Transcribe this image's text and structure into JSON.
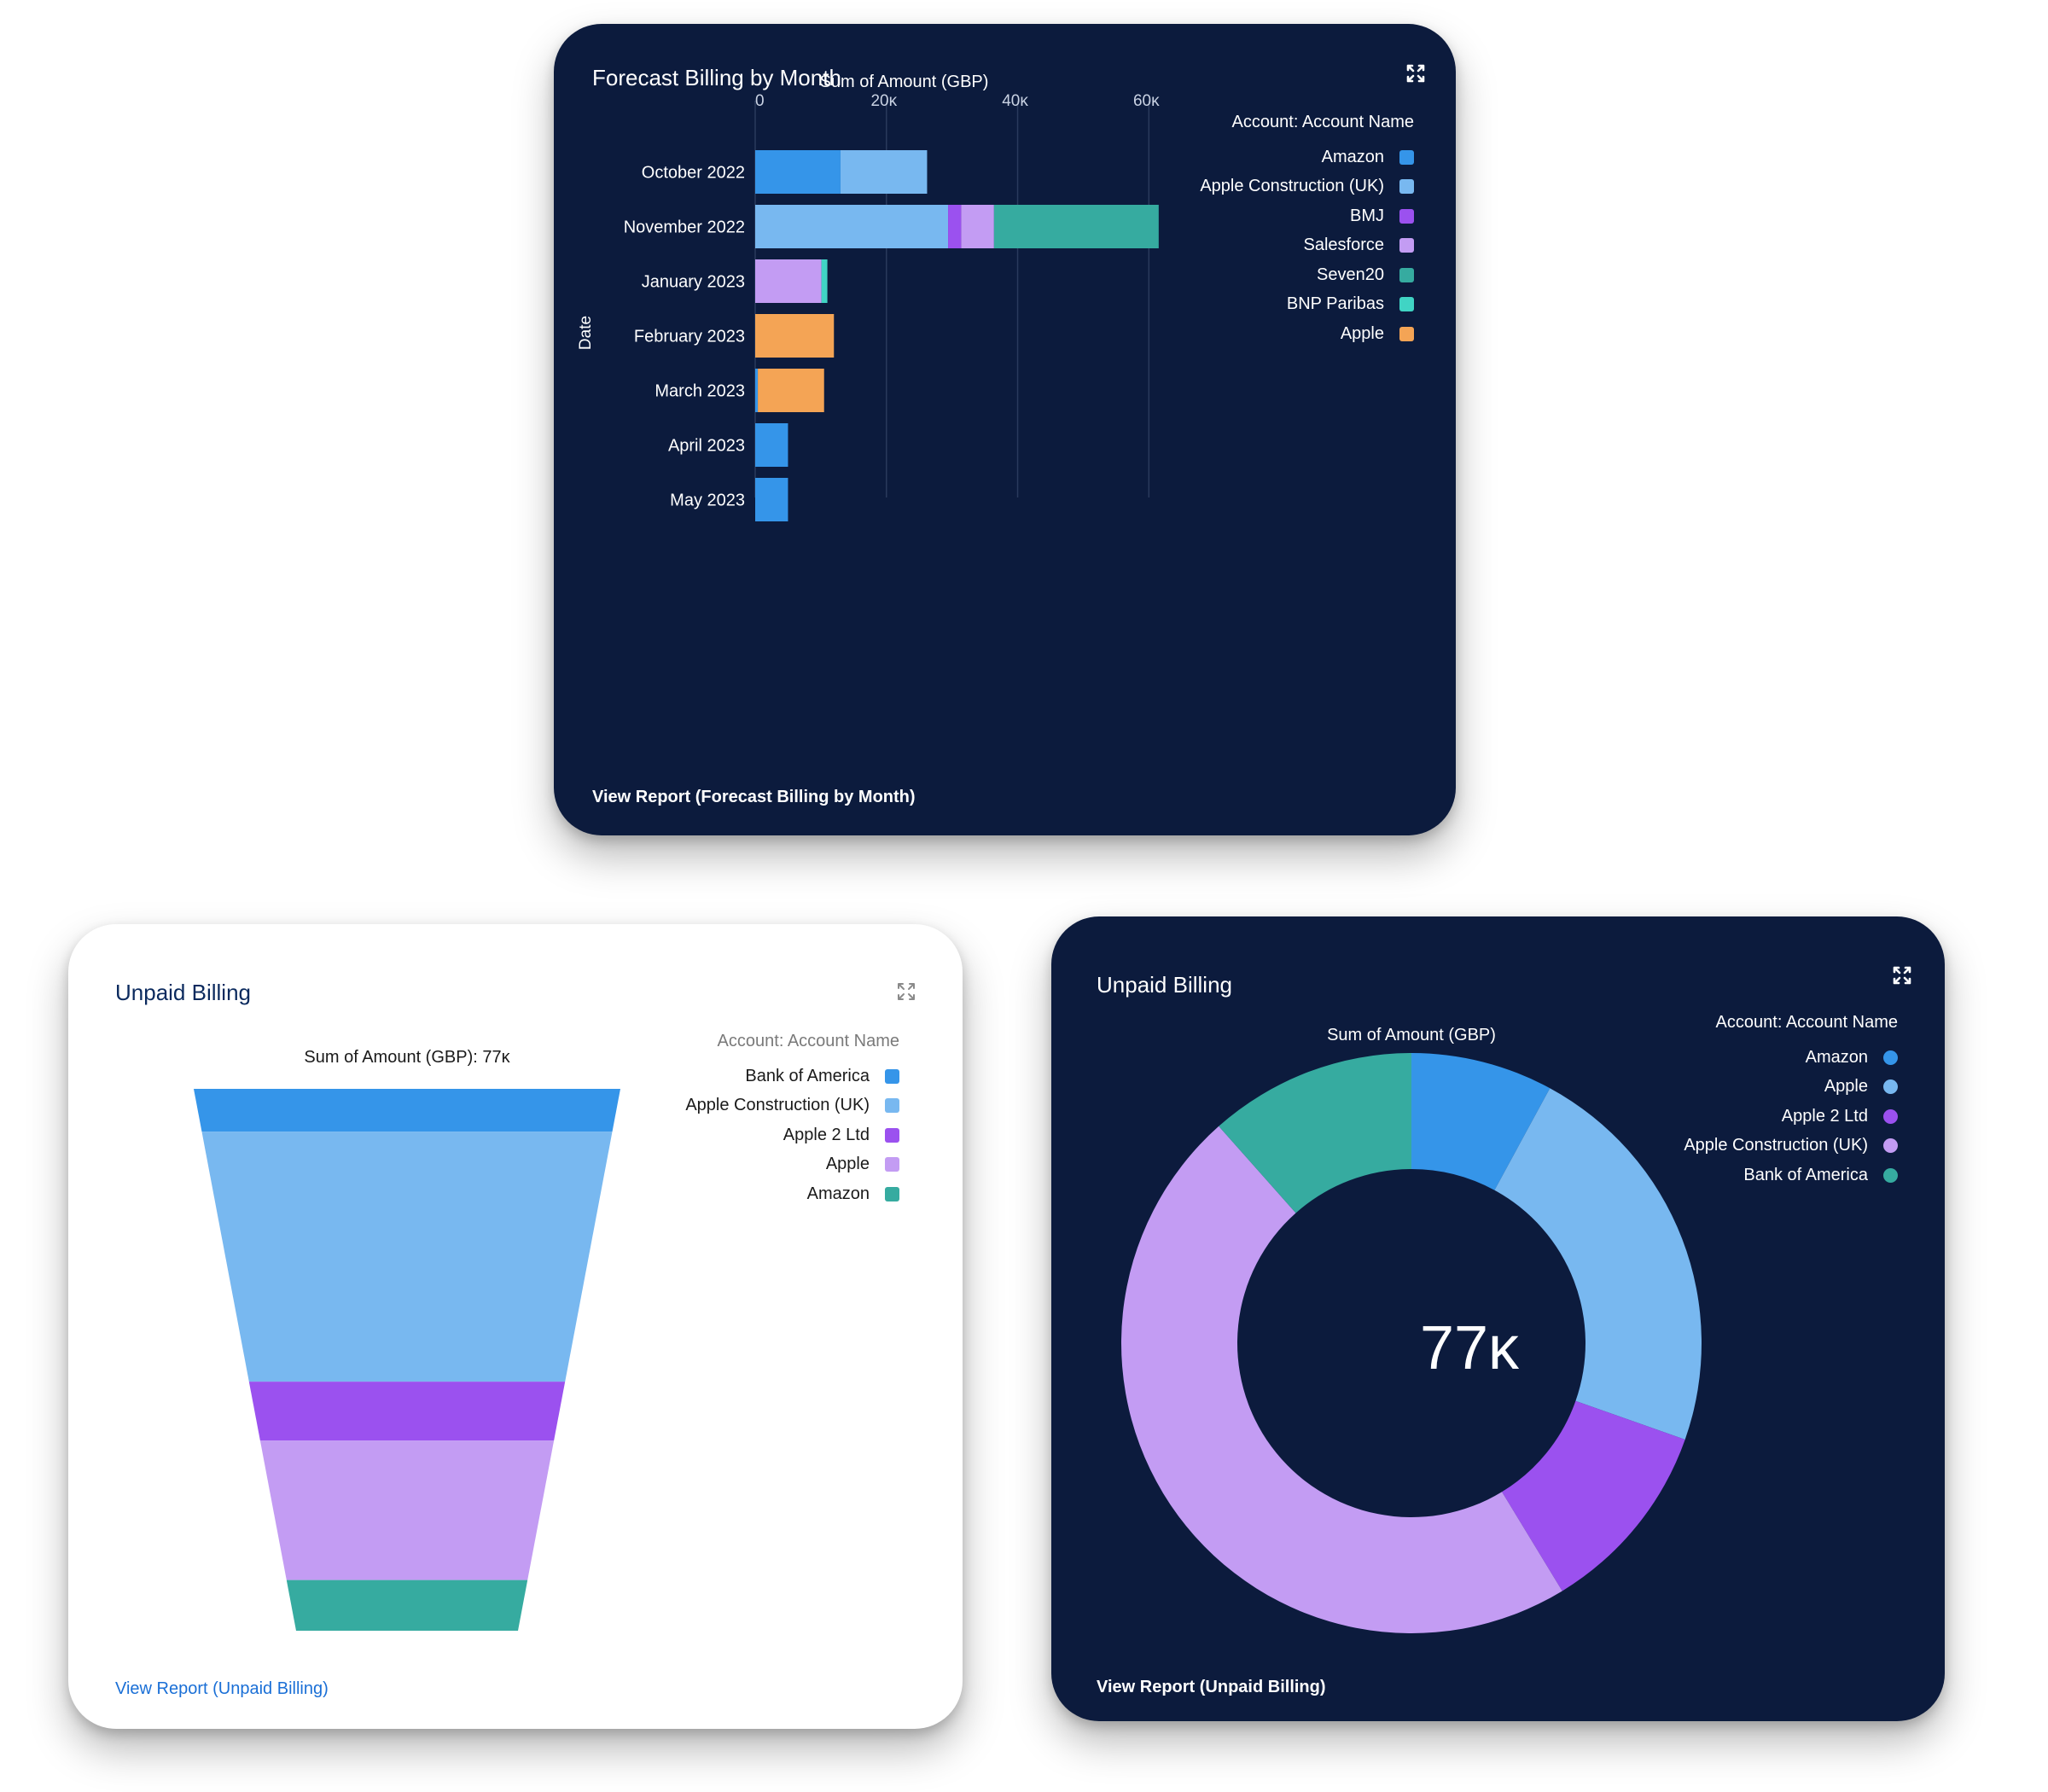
{
  "colors": {
    "blue": "#3595e9",
    "light_blue": "#78b8f0",
    "purple": "#9b51ef",
    "lavender": "#c39cf3",
    "teal": "#36aba0",
    "cyan": "#40d4c4",
    "orange": "#f4a455",
    "dark_bg": "#0c1b3d"
  },
  "forecast": {
    "title": "Forecast Billing by Month",
    "footer_link": "View Report (Forecast Billing by Month)",
    "expand_icon": "expand-icon",
    "legend_title": "Account: Account Name"
  },
  "unpaid_funnel": {
    "title": "Unpaid Billing",
    "footer_link": "View Report (Unpaid Billing)",
    "expand_icon": "expand-icon",
    "legend_title": "Account: Account Name"
  },
  "unpaid_donut": {
    "title": "Unpaid Billing",
    "footer_link": "View Report (Unpaid Billing)",
    "expand_icon": "expand-icon",
    "legend_title": "Account: Account Name",
    "center_value": "77ĸ"
  },
  "chart_data": [
    {
      "type": "bar",
      "orientation": "horizontal",
      "stacked": true,
      "title": "Forecast Billing by Month",
      "xlabel": "Sum of Amount (GBP)",
      "ylabel": "Date",
      "xlim": [
        0,
        61000
      ],
      "xticks": [
        0,
        20000,
        40000,
        60000
      ],
      "xtick_labels": [
        "0",
        "20ĸ",
        "40ĸ",
        "60ĸ"
      ],
      "legend_title": "Account: Account Name",
      "legend_position": "top-right",
      "categories": [
        "October 2022",
        "November 2022",
        "January 2023",
        "February 2023",
        "March 2023",
        "April 2023",
        "May 2023"
      ],
      "series": [
        {
          "name": "Amazon",
          "color": "#3595e9",
          "values": [
            13000,
            0,
            0,
            0,
            400,
            5000,
            5000
          ]
        },
        {
          "name": "Apple Construction (UK)",
          "color": "#78b8f0",
          "values": [
            13200,
            29400,
            0,
            0,
            0,
            0,
            0
          ]
        },
        {
          "name": "BMJ",
          "color": "#9b51ef",
          "values": [
            0,
            2000,
            0,
            0,
            0,
            0,
            0
          ]
        },
        {
          "name": "Salesforce",
          "color": "#c39cf3",
          "values": [
            0,
            5000,
            10100,
            0,
            0,
            0,
            0
          ]
        },
        {
          "name": "Seven20",
          "color": "#36aba0",
          "values": [
            0,
            25100,
            0,
            0,
            0,
            0,
            0
          ]
        },
        {
          "name": "BNP Paribas",
          "color": "#40d4c4",
          "values": [
            0,
            0,
            900,
            0,
            0,
            0,
            0
          ]
        },
        {
          "name": "Apple",
          "color": "#f4a455",
          "values": [
            0,
            0,
            0,
            12000,
            10100,
            0,
            0
          ]
        }
      ]
    },
    {
      "type": "funnel",
      "title": "Unpaid Billing",
      "label": "Sum of Amount (GBP): 77ĸ",
      "total": 77000,
      "legend_title": "Account: Account Name",
      "legend_position": "top-right",
      "series": [
        {
          "name": "Bank of America",
          "color": "#3595e9",
          "value": 6100
        },
        {
          "name": "Apple Construction (UK)",
          "color": "#78b8f0",
          "value": 35500
        },
        {
          "name": "Apple 2 Ltd",
          "color": "#9b51ef",
          "value": 8400
        },
        {
          "name": "Apple",
          "color": "#c39cf3",
          "value": 19800
        },
        {
          "name": "Amazon",
          "color": "#36aba0",
          "value": 7200
        }
      ]
    },
    {
      "type": "pie",
      "variant": "donut",
      "title": "Unpaid Billing",
      "label": "Sum of Amount (GBP)",
      "center_label": "77ĸ",
      "legend_title": "Account: Account Name",
      "legend_position": "top-right",
      "series": [
        {
          "name": "Amazon",
          "color": "#3595e9",
          "value": 6100
        },
        {
          "name": "Apple",
          "color": "#78b8f0",
          "value": 17300
        },
        {
          "name": "Apple 2 Ltd",
          "color": "#9b51ef",
          "value": 8400
        },
        {
          "name": "Apple Construction (UK)",
          "color": "#c39cf3",
          "value": 36300
        },
        {
          "name": "Bank of America",
          "color": "#36aba0",
          "value": 8900
        }
      ]
    }
  ]
}
